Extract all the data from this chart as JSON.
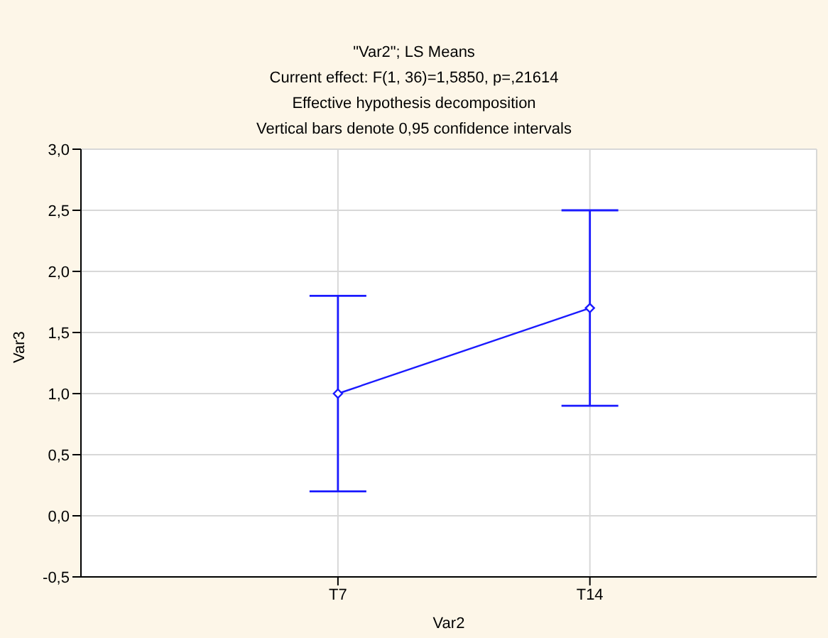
{
  "chart_data": {
    "type": "line",
    "title": "\"Var2\"; LS Means",
    "subtitle": "Current effect: F(1, 36)=1,5850, p=,21614",
    "annotations": [
      "Effective hypothesis decomposition",
      "Vertical bars denote 0,95 confidence intervals"
    ],
    "xlabel": "Var2",
    "ylabel": "Var3",
    "categories": [
      "T7",
      "T14"
    ],
    "series": [
      {
        "color": "#1a1aff",
        "values": [
          1.0,
          1.7
        ],
        "errors": [
          [
            0.2,
            1.8
          ],
          [
            0.9,
            2.5
          ]
        ]
      }
    ],
    "ylim": [
      -0.5,
      3.0
    ],
    "yticks": [
      {
        "value": -0.5,
        "label": "-0,5"
      },
      {
        "value": 0,
        "label": "0,0"
      },
      {
        "value": 0.5,
        "label": "0,5"
      },
      {
        "value": 1,
        "label": "1,0"
      },
      {
        "value": 1.5,
        "label": "1,5"
      },
      {
        "value": 2,
        "label": "2,0"
      },
      {
        "value": 2.5,
        "label": "2,5"
      },
      {
        "value": 3,
        "label": "3,0"
      }
    ],
    "grid": true,
    "marker": "diamond",
    "line_style": "solid",
    "legend": false
  }
}
